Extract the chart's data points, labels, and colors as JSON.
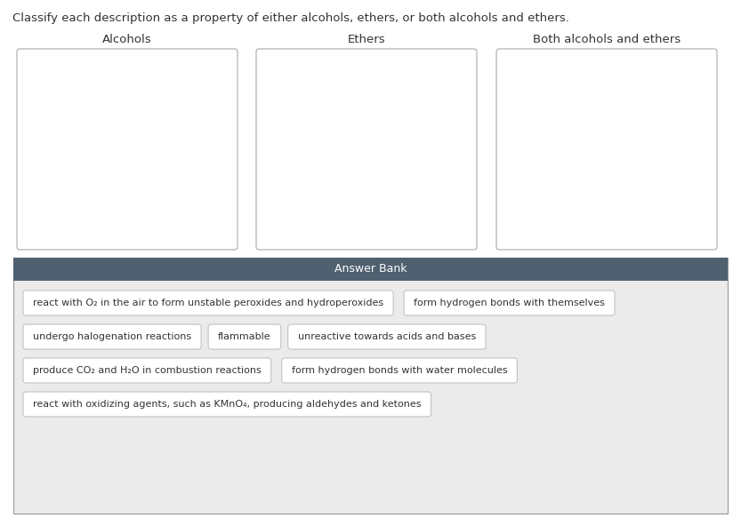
{
  "title": "Classify each description as a property of either alcohols, ethers, or both alcohols and ethers.",
  "title_fontsize": 9.5,
  "columns": [
    "Alcohols",
    "Ethers",
    "Both alcohols and ethers"
  ],
  "answer_bank_title": "Answer Bank",
  "answer_bank_bg": "#4f6070",
  "answer_bank_text_color": "#ffffff",
  "answer_bank_area_bg": "#ebebeb",
  "box_bg": "#ffffff",
  "box_border": "#bbbbbb",
  "items_row1": [
    "react with O₂ in the air to form unstable peroxides and hydroperoxides",
    "form hydrogen bonds with themselves"
  ],
  "items_row2": [
    "undergo halogenation reactions",
    "flammable",
    "unreactive towards acids and bases"
  ],
  "items_row3": [
    "produce CO₂ and H₂O in combustion reactions",
    "form hydrogen bonds with water molecules"
  ],
  "items_row4": [
    "react with oxidizing agents, such as KMnO₄, producing aldehydes and ketones"
  ],
  "drop_box_border": "#aaaaaa",
  "drop_box_bg": "#ffffff",
  "background_color": "#ffffff",
  "text_color": "#333333",
  "column_header_fontsize": 9.5,
  "item_fontsize": 8.0,
  "fig_width": 8.33,
  "fig_height": 5.92,
  "dpi": 100
}
